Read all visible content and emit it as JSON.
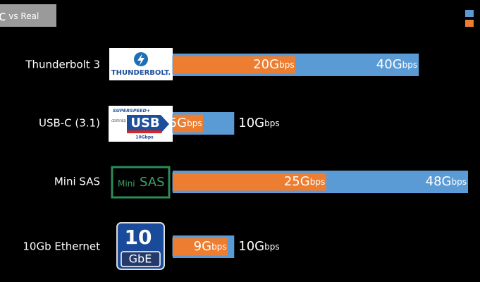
{
  "chart_data": {
    "type": "bar",
    "orientation": "horizontal",
    "title": "c vs Real",
    "categories": [
      "Thunderbolt 3",
      "USB-C (3.1)",
      "Mini SAS",
      "10Gb Ethernet"
    ],
    "series": [
      {
        "color": "#5b9bd5",
        "values": [
          40,
          10,
          48,
          10
        ],
        "value_labels": [
          "40Gbps",
          "10Gbps",
          "48Gbps",
          "10Gbps"
        ]
      },
      {
        "color": "#ed7d31",
        "values": [
          20,
          5,
          25,
          9
        ],
        "value_labels": [
          "20Gbps",
          "5Gbps",
          "25Gbps",
          "9Gbps"
        ]
      }
    ]
  },
  "logos": [
    {
      "main": "THUNDERBOLT."
    },
    {
      "top": "SUPERSPEED+",
      "side": "CERTIFIED",
      "main": "USB",
      "bottom": "10Gbps"
    },
    {
      "small": "Mini",
      "main": "SAS"
    },
    {
      "main": "10",
      "bottom": "GbE"
    }
  ]
}
